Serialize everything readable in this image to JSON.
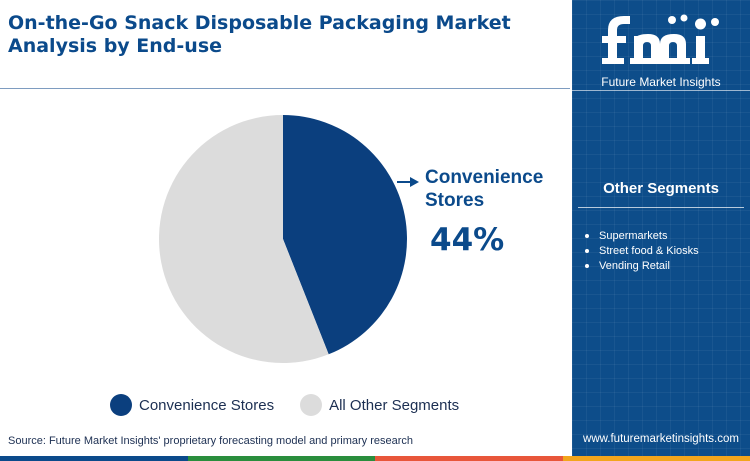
{
  "header": {
    "title": "On-the-Go Snack Disposable Packaging Market Analysis by End-use"
  },
  "chart_data": {
    "type": "pie",
    "categories": [
      "Convenience Stores",
      "All Other Segments"
    ],
    "values": [
      44,
      56
    ],
    "colors": [
      "#0b3f7e",
      "#dcdcdc"
    ],
    "callout": {
      "label": "Convenience Stores",
      "value": "44%"
    },
    "legend": [
      "Convenience Stores",
      "All Other Segments"
    ],
    "legend_position": "bottom"
  },
  "source": "Source: Future Market Insights' proprietary forecasting model and primary research",
  "sidebar": {
    "logo_text": "fmi",
    "logo_tagline": "Future Market Insights",
    "panel_heading": "Other Segments",
    "segments": [
      "Supermarkets",
      "Street food & Kiosks",
      "Vending Retail"
    ],
    "website": "www.futuremarketinsights.com",
    "color": "#0d4d8a"
  },
  "bottom_bar_colors": [
    "#0b4a8b",
    "#2a8e3d",
    "#e8563a",
    "#f2a51c"
  ]
}
